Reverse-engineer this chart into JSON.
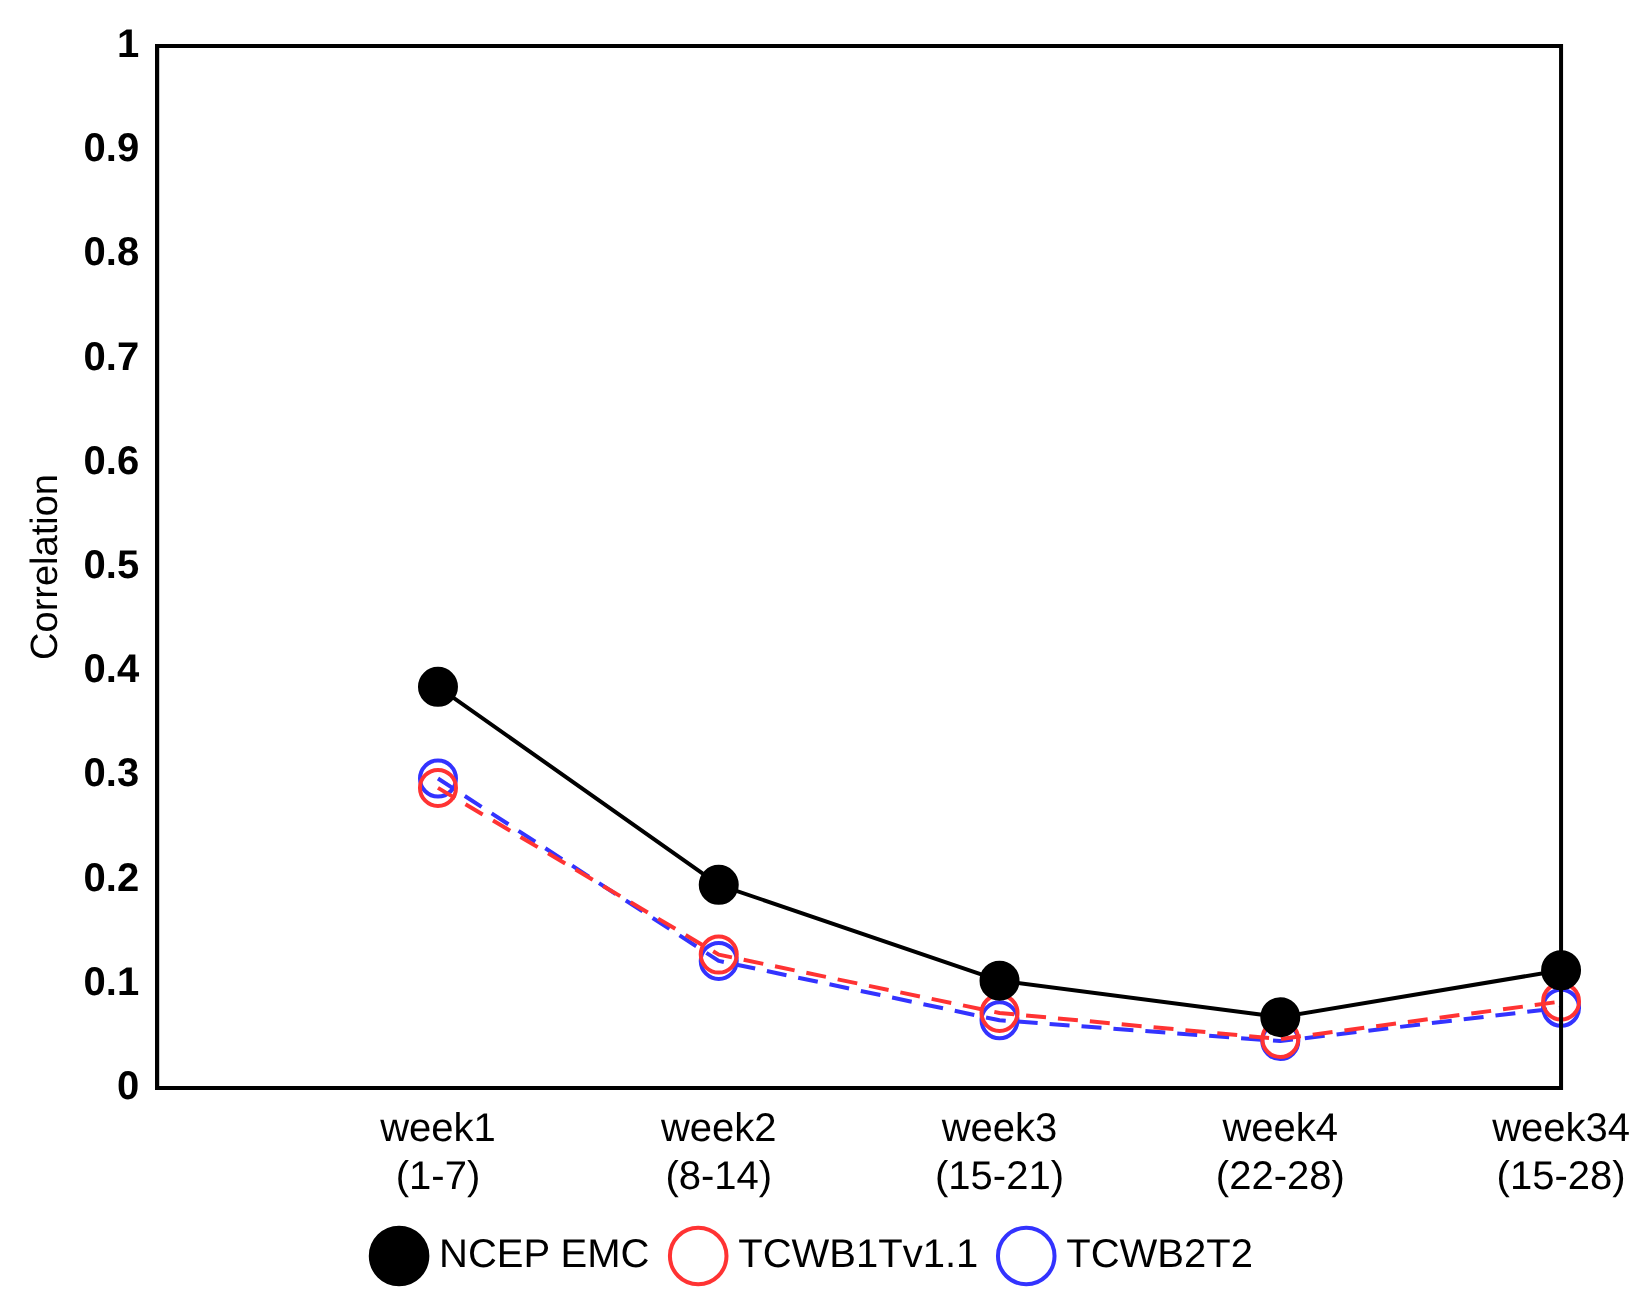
{
  "chart_data": {
    "type": "line",
    "ylabel": "Correlation",
    "categories": [
      null,
      "week1\n(1-7)",
      "week2\n(8-14)",
      "week3\n(15-21)",
      "week4\n(22-28)",
      "week34\n(15-28)"
    ],
    "series": [
      {
        "name": "NCEP EMC",
        "color": "#000000",
        "values": [
          null,
          0.385,
          0.195,
          0.103,
          0.068,
          0.113
        ],
        "marker": "circle",
        "line_style": "solid"
      },
      {
        "name": "TCWB1Tv1.1",
        "color": "#ff3333",
        "values": [
          null,
          0.288,
          0.128,
          0.072,
          0.047,
          0.083
        ],
        "marker": "circle",
        "line_style": "dashed"
      },
      {
        "name": "TCWB2T2",
        "color": "#3333ff",
        "values": [
          null,
          0.297,
          0.122,
          0.065,
          0.045,
          0.077
        ],
        "marker": "circle",
        "line_style": "dashed"
      }
    ],
    "ylim": [
      0,
      1
    ],
    "yticks": [
      0,
      0.1,
      0.2,
      0.3,
      0.4,
      0.5,
      0.6,
      0.7,
      0.8,
      0.9,
      1
    ],
    "grid": false,
    "legend": "bottom"
  }
}
